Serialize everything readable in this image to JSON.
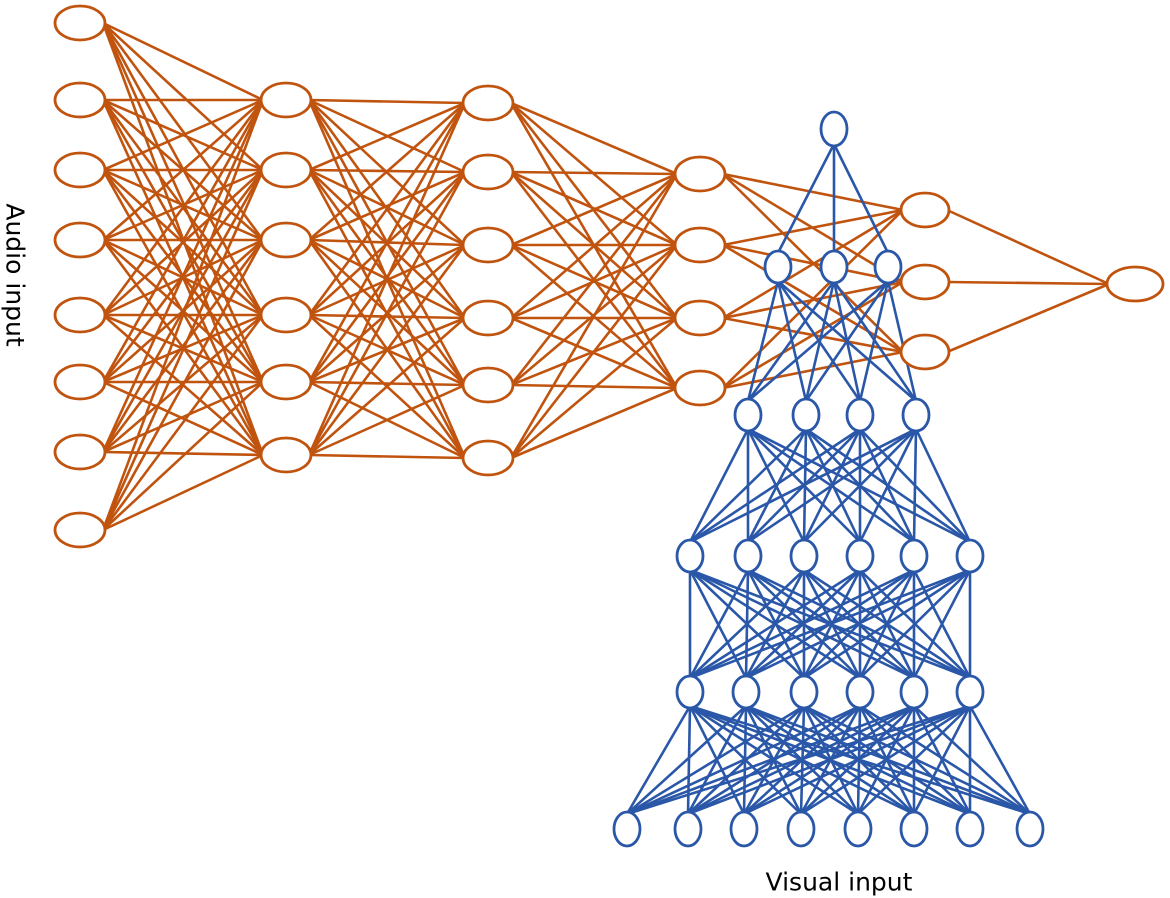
{
  "labels": {
    "audio": "Audio input",
    "visual": "Visual input"
  },
  "colors": {
    "audio_network": "#C0540F",
    "visual_network": "#2A57A8",
    "background": "#FFFFFF"
  },
  "audio_network": {
    "layer_node_counts": [
      8,
      6,
      6,
      4,
      3,
      1
    ],
    "connectivity": "fully-connected"
  },
  "visual_network": {
    "layer_node_counts": [
      8,
      6,
      6,
      4,
      3,
      1
    ],
    "connectivity": "fully-connected",
    "direction": "bottom-to-top"
  }
}
